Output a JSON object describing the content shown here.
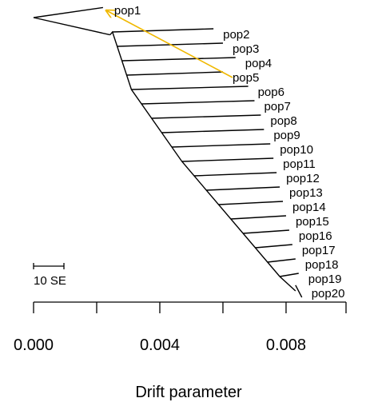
{
  "chart_data": {
    "type": "tree",
    "xlabel": "Drift parameter",
    "xlim": [
      0.0,
      0.0099
    ],
    "xticks": [
      0.0,
      0.002,
      0.004,
      0.006,
      0.008,
      0.0099
    ],
    "xtick_labels": [
      {
        "value": 0.0,
        "label": "0.000"
      },
      {
        "value": 0.004,
        "label": "0.004"
      },
      {
        "value": 0.008,
        "label": "0.008"
      }
    ],
    "scale_bar": {
      "label": "10 SE"
    },
    "backbone": [
      {
        "x": 0.0022,
        "row": 1
      },
      {
        "x": 0.0025,
        "row": 2
      },
      {
        "x": 0.0031,
        "row": 6
      },
      {
        "x": 0.0047,
        "row": 11
      },
      {
        "x": 0.0078,
        "row": 19
      },
      {
        "x": 0.0083,
        "row": 20
      }
    ],
    "leaves": [
      {
        "name": "pop1",
        "x": 0.0022,
        "row": 1
      },
      {
        "name": "pop2",
        "x": 0.0057,
        "row": 2
      },
      {
        "name": "pop3",
        "x": 0.006,
        "row": 3
      },
      {
        "name": "pop4",
        "x": 0.0064,
        "row": 4
      },
      {
        "name": "pop5",
        "x": 0.006,
        "row": 5
      },
      {
        "name": "pop6",
        "x": 0.0068,
        "row": 6
      },
      {
        "name": "pop7",
        "x": 0.007,
        "row": 7
      },
      {
        "name": "pop8",
        "x": 0.0072,
        "row": 8
      },
      {
        "name": "pop9",
        "x": 0.0073,
        "row": 9
      },
      {
        "name": "pop10",
        "x": 0.0075,
        "row": 10
      },
      {
        "name": "pop11",
        "x": 0.0076,
        "row": 11
      },
      {
        "name": "pop12",
        "x": 0.0077,
        "row": 12
      },
      {
        "name": "pop13",
        "x": 0.0078,
        "row": 13
      },
      {
        "name": "pop14",
        "x": 0.0079,
        "row": 14
      },
      {
        "name": "pop15",
        "x": 0.008,
        "row": 15
      },
      {
        "name": "pop16",
        "x": 0.0081,
        "row": 16
      },
      {
        "name": "pop17",
        "x": 0.0082,
        "row": 17
      },
      {
        "name": "pop18",
        "x": 0.0083,
        "row": 18
      },
      {
        "name": "pop19",
        "x": 0.0084,
        "row": 19
      },
      {
        "name": "pop20",
        "x": 0.0085,
        "row": 20
      }
    ],
    "migration_edges": [
      {
        "from": "pop5",
        "to": "pop1",
        "color": "#f0b800"
      }
    ],
    "colors": {
      "tree": "#000000",
      "migration": "#f0b800"
    }
  }
}
